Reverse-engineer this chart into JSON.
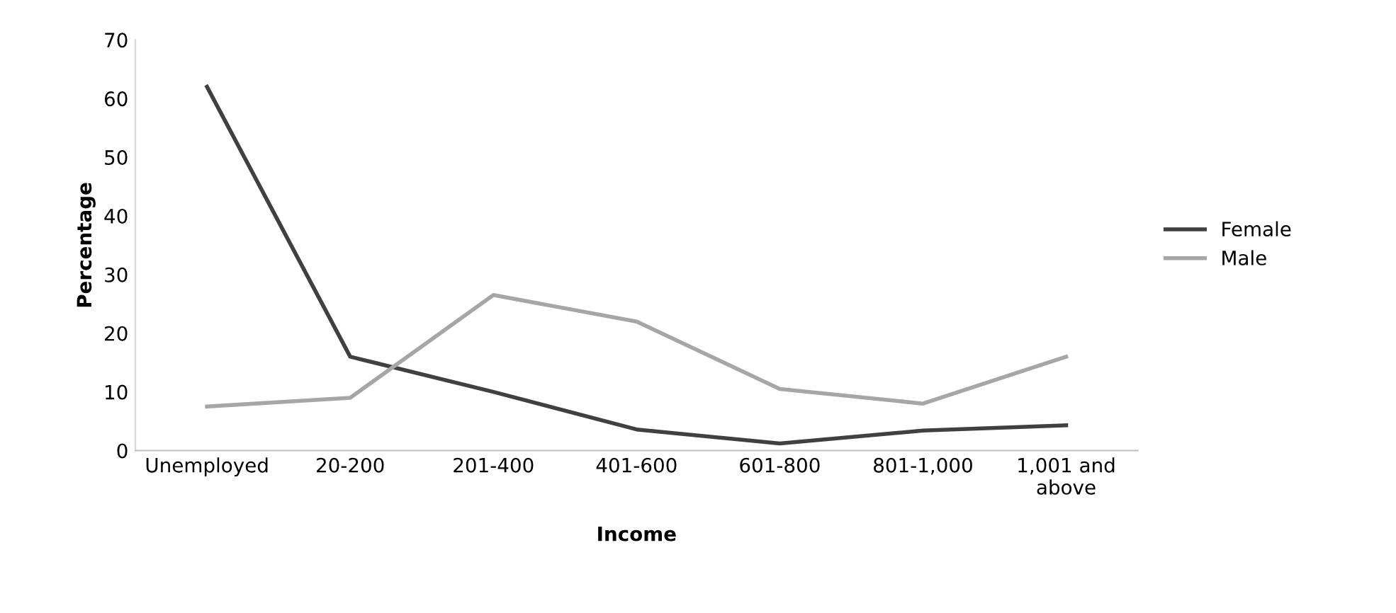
{
  "chart_data": {
    "type": "line",
    "xlabel": "Income",
    "ylabel": "Percentage",
    "categories": [
      "Unemployed",
      "20-200",
      "201-400",
      "401-600",
      "601-800",
      "801-1,000",
      "1,001 and\nabove"
    ],
    "series": [
      {
        "name": "Female",
        "color": "#404040",
        "values": [
          62,
          16,
          10,
          3.6,
          1.2,
          3.4,
          4.3
        ]
      },
      {
        "name": "Male",
        "color": "#a6a6a6",
        "values": [
          7.5,
          9,
          26.5,
          22,
          10.5,
          8,
          16
        ]
      }
    ],
    "ylim": [
      0,
      70
    ],
    "yticks": [
      0,
      10,
      20,
      30,
      40,
      50,
      60,
      70
    ],
    "grid": false,
    "legend": "right",
    "marker": "none",
    "line_style": "solid"
  }
}
